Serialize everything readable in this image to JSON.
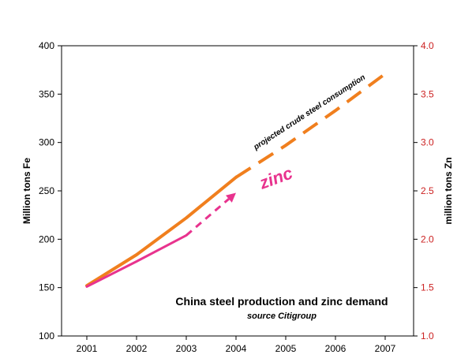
{
  "chart_data": {
    "type": "line",
    "title": "China steel production and zinc demand",
    "subtitle": "source Citigroup",
    "ylabel": "Million tons Fe",
    "ylabel_right": "million tons Zn",
    "categories": [
      "2001",
      "2002",
      "2003",
      "2004",
      "2005",
      "2006",
      "2007"
    ],
    "ylim": [
      100,
      400
    ],
    "y_ticks": [
      "100",
      "150",
      "200",
      "250",
      "300",
      "350",
      "400"
    ],
    "ylim_right": [
      1.0,
      4.0
    ],
    "y_ticks_right": [
      "1.0",
      "1.5",
      "2.0",
      "2.5",
      "3.0",
      "3.5",
      "4.0"
    ],
    "grid": false,
    "series": [
      {
        "axis": "left",
        "color": "#f07f1e",
        "actual": {
          "x": [
            2001,
            2002,
            2003,
            2004
          ],
          "y": [
            152,
            184,
            222,
            264
          ]
        },
        "projected": {
          "x": [
            2004,
            2005,
            2006,
            2007
          ],
          "y": [
            264,
            297,
            333,
            371
          ]
        }
      },
      {
        "axis": "right",
        "color": "#e8338e",
        "actual": {
          "x": [
            2001,
            2002,
            2003
          ],
          "y": [
            1.51,
            1.77,
            2.04
          ]
        },
        "projected": {
          "x": [
            2003,
            2004
          ],
          "y": [
            2.04,
            2.48
          ]
        }
      }
    ],
    "annotations": {
      "steel": "projected crude steel consumption",
      "zinc": "zinc"
    },
    "colors": {
      "axis": "#000000",
      "right_axis": "#cc2222",
      "steel": "#f07f1e",
      "zinc": "#e8338e"
    }
  }
}
